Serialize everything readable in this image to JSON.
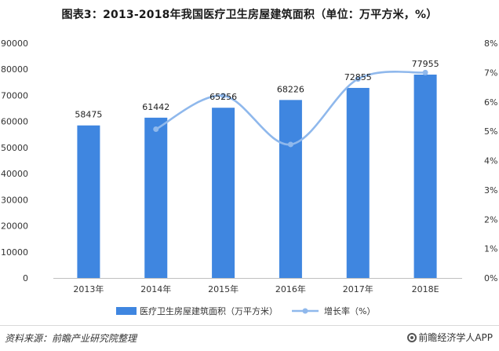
{
  "title": "图表3：2013-2018年我国医疗卫生房屋建筑面积（单位：万平方米，%）",
  "chart_data": {
    "type": "bar",
    "categories": [
      "2013年",
      "2014年",
      "2015年",
      "2016年",
      "2017年",
      "2018E"
    ],
    "series": [
      {
        "name": "医疗卫生房屋建筑面积（万平方米）",
        "type": "bar",
        "axis": "left",
        "color": "#3f86e0",
        "values": [
          58475,
          61442,
          65256,
          68226,
          72855,
          77955
        ]
      },
      {
        "name": "增长率（%）",
        "type": "line",
        "axis": "right",
        "color": "#8fb8ec",
        "values": [
          null,
          5.07,
          6.21,
          4.55,
          6.78,
          7.0
        ]
      }
    ],
    "y_left": {
      "min": 0,
      "max": 90000,
      "ticks": [
        0,
        10000,
        20000,
        30000,
        40000,
        50000,
        60000,
        70000,
        80000,
        90000
      ]
    },
    "y_right": {
      "min": 0,
      "max": 8,
      "ticks": [
        "0%",
        "1%",
        "2%",
        "3%",
        "4%",
        "5%",
        "6%",
        "7%",
        "8%"
      ]
    },
    "data_labels": [
      "58475",
      "61442",
      "65256",
      "68226",
      "72855",
      "77955"
    ],
    "legend": "bottom",
    "grid": false
  },
  "footer": {
    "source": "资料来源：前瞻产业研究院整理",
    "brand": "前瞻经济学人APP",
    "brand_icon": "qianzhan-logo-icon"
  }
}
